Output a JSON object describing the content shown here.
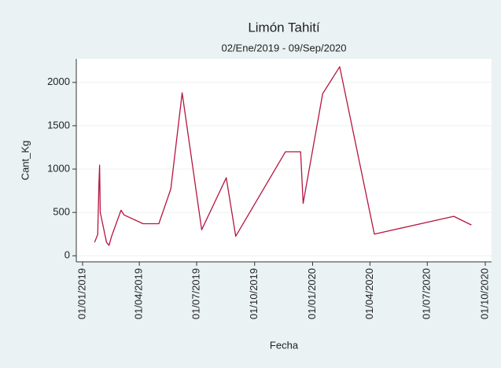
{
  "chart_data": {
    "type": "line",
    "title": "Limón Tahití",
    "subtitle": "02/Ene/2019 - 09/Sep/2020",
    "xlabel": "Fecha",
    "ylabel": "Cant_Kg",
    "x": [
      "2019-01-20",
      "2019-01-25",
      "2019-01-27",
      "2019-01-28",
      "2019-01-29",
      "2019-02-08",
      "2019-02-12",
      "2019-02-16",
      "2019-03-03",
      "2019-03-08",
      "2019-04-07",
      "2019-05-02",
      "2019-05-21",
      "2019-06-08",
      "2019-07-09",
      "2019-08-17",
      "2019-09-01",
      "2019-11-19",
      "2019-12-13",
      "2019-12-17",
      "2020-01-17",
      "2020-02-13",
      "2020-04-08",
      "2020-08-12",
      "2020-09-09"
    ],
    "series": [
      {
        "name": "Cant_Kg",
        "color": "#b5163f",
        "values": [
          155,
          245,
          845,
          1045,
          500,
          155,
          120,
          225,
          525,
          470,
          370,
          370,
          770,
          1880,
          300,
          900,
          225,
          1200,
          1200,
          605,
          1870,
          2180,
          250,
          455,
          355
        ]
      }
    ],
    "xlim": [
      "2018-12-22",
      "2020-10-11"
    ],
    "xticks": [
      {
        "value": "2019-01-01",
        "label": "01/01/2019"
      },
      {
        "value": "2019-04-01",
        "label": "01/04/2019"
      },
      {
        "value": "2019-07-01",
        "label": "01/07/2019"
      },
      {
        "value": "2019-10-01",
        "label": "01/10/2019"
      },
      {
        "value": "2020-01-01",
        "label": "01/01/2020"
      },
      {
        "value": "2020-04-01",
        "label": "01/04/2020"
      },
      {
        "value": "2020-07-01",
        "label": "01/07/2020"
      },
      {
        "value": "2020-10-01",
        "label": "01/10/2020"
      }
    ],
    "ylim": [
      -70,
      2270
    ],
    "yticks": [
      0,
      500,
      1000,
      1500,
      2000
    ],
    "grid": true
  }
}
